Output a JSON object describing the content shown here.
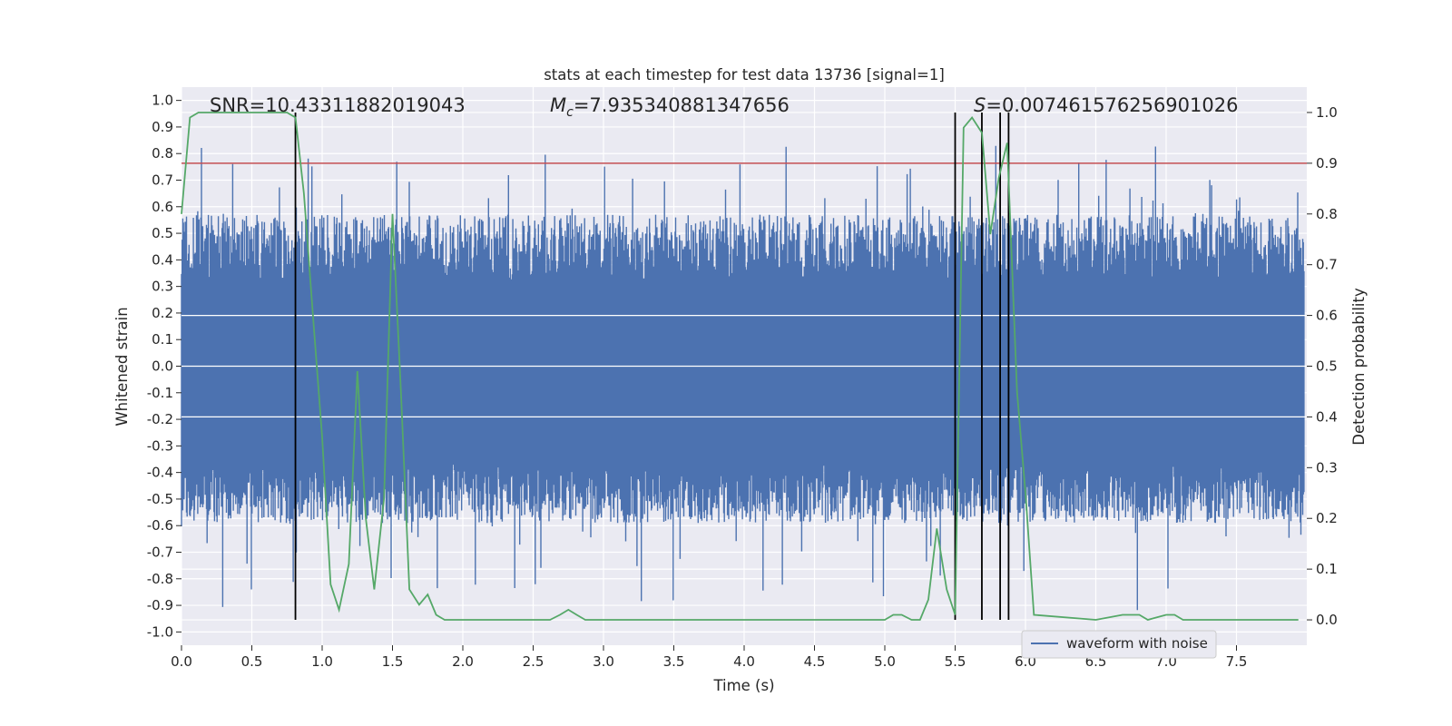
{
  "chart_data": {
    "type": "line",
    "title": "stats at each timestep for test data 13736 [signal=1]",
    "xlabel": "Time (s)",
    "ylabel_left": "Whitened strain",
    "ylabel_right": "Detection probability",
    "xlim": [
      0,
      8
    ],
    "ylim_left": [
      -1.05,
      1.05
    ],
    "ylim_right": [
      -0.05,
      1.05
    ],
    "x_ticks": [
      "0.0",
      "0.5",
      "1.0",
      "1.5",
      "2.0",
      "2.5",
      "3.0",
      "3.5",
      "4.0",
      "4.5",
      "5.0",
      "5.5",
      "6.0",
      "6.5",
      "7.0",
      "7.5"
    ],
    "x_tick_values": [
      0,
      0.5,
      1,
      1.5,
      2,
      2.5,
      3,
      3.5,
      4,
      4.5,
      5,
      5.5,
      6,
      6.5,
      7,
      7.5
    ],
    "y_ticks_left": [
      "1.0",
      "0.9",
      "0.8",
      "0.7",
      "0.6",
      "0.5",
      "0.4",
      "0.3",
      "0.2",
      "0.1",
      "0.0",
      "-0.1",
      "-0.2",
      "-0.3",
      "-0.4",
      "-0.5",
      "-0.6",
      "-0.7",
      "-0.8",
      "-0.9",
      "-1.0"
    ],
    "y_tick_values_left": [
      1,
      0.9,
      0.8,
      0.7,
      0.6,
      0.5,
      0.4,
      0.3,
      0.2,
      0.1,
      0,
      -0.1,
      -0.2,
      -0.3,
      -0.4,
      -0.5,
      -0.6,
      -0.7,
      -0.8,
      -0.9,
      -1.0
    ],
    "y_ticks_right": [
      "1.0",
      "0.9",
      "0.8",
      "0.7",
      "0.6",
      "0.5",
      "0.4",
      "0.3",
      "0.2",
      "0.1",
      "0.0"
    ],
    "y_tick_values_right": [
      1,
      0.9,
      0.8,
      0.7,
      0.6,
      0.5,
      0.4,
      0.3,
      0.2,
      0.1,
      0
    ],
    "annotations": {
      "snr": "SNR=10.43311882019043",
      "mc_symbol": "M",
      "mc_sub": "c",
      "mc_value": "=7.935340881347656",
      "s_symbol": "S",
      "s_value": "=0.007461576256901026"
    },
    "legend": {
      "entry": "waveform with noise",
      "placement": "lower-right"
    },
    "grid": true,
    "waveform": {
      "name": "waveform with noise",
      "color": "#4c72b0",
      "band_min": -0.37,
      "band_max": 0.32,
      "peak_max": 0.83,
      "peak_min": -0.93
    },
    "threshold_line": {
      "value": 0.9,
      "axis": "right",
      "color": "#c44e52"
    },
    "vertical_lines": {
      "x": [
        0.81,
        5.5,
        5.69,
        5.82,
        5.88
      ],
      "color": "#000000"
    },
    "detection_probability": {
      "color": "#55a868",
      "x": [
        0.0,
        0.06,
        0.12,
        0.19,
        0.25,
        0.31,
        0.37,
        0.44,
        0.5,
        0.56,
        0.62,
        0.69,
        0.75,
        0.81,
        0.87,
        0.94,
        1.0,
        1.06,
        1.12,
        1.19,
        1.25,
        1.31,
        1.37,
        1.44,
        1.5,
        1.56,
        1.62,
        1.69,
        1.75,
        1.81,
        1.87,
        1.94,
        2.0,
        2.5,
        2.62,
        2.69,
        2.75,
        2.81,
        2.87,
        3.0,
        3.5,
        3.62,
        3.75,
        3.87,
        4.5,
        4.94,
        5.0,
        5.06,
        5.12,
        5.19,
        5.25,
        5.31,
        5.37,
        5.44,
        5.5,
        5.56,
        5.62,
        5.69,
        5.75,
        5.81,
        5.87,
        5.94,
        6.0,
        6.06,
        6.5,
        6.69,
        6.81,
        6.87,
        7.0,
        7.06,
        7.12,
        7.25,
        7.94
      ],
      "values": [
        0.8,
        0.99,
        1.0,
        1.0,
        1.0,
        1.0,
        1.0,
        1.0,
        1.0,
        1.0,
        1.0,
        1.0,
        1.0,
        0.99,
        0.84,
        0.58,
        0.36,
        0.07,
        0.02,
        0.11,
        0.49,
        0.2,
        0.06,
        0.24,
        0.8,
        0.45,
        0.06,
        0.03,
        0.05,
        0.01,
        0.0,
        0.0,
        0.0,
        0.0,
        0.0,
        0.01,
        0.02,
        0.01,
        0.0,
        0.0,
        0.0,
        0.0,
        0.0,
        0.0,
        0.0,
        0.0,
        0.0,
        0.01,
        0.01,
        0.0,
        0.0,
        0.04,
        0.18,
        0.06,
        0.01,
        0.97,
        0.99,
        0.96,
        0.76,
        0.87,
        0.94,
        0.45,
        0.25,
        0.01,
        0.0,
        0.01,
        0.01,
        0.0,
        0.01,
        0.01,
        0.0,
        0.0,
        0.0
      ]
    }
  }
}
